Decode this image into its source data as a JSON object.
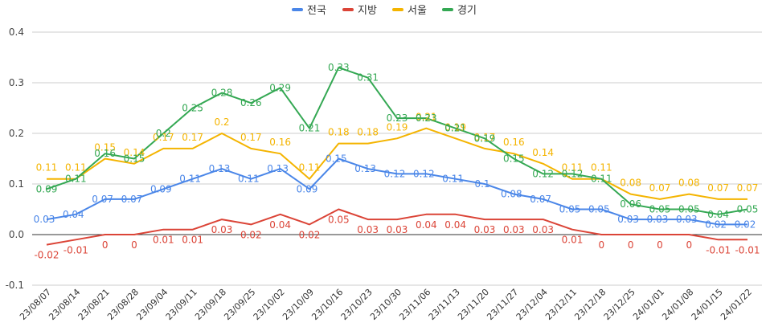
{
  "chart_data": {
    "type": "line",
    "title": "",
    "xlabel": "",
    "ylabel": "",
    "ylim": [
      -0.1,
      0.4
    ],
    "yticks": [
      "-0.1",
      "0.0",
      "0.1",
      "0.2",
      "0.3",
      "0.4"
    ],
    "grid": true,
    "legend_position": "top-center",
    "categories": [
      "23/08/07",
      "23/08/14",
      "23/08/21",
      "23/08/28",
      "23/09/04",
      "23/09/11",
      "23/09/18",
      "23/09/25",
      "23/10/02",
      "23/10/09",
      "23/10/16",
      "23/10/23",
      "23/10/30",
      "23/11/06",
      "23/11/13",
      "23/11/20",
      "23/11/27",
      "23/12/04",
      "23/12/11",
      "23/12/18",
      "23/12/25",
      "24/01/01",
      "24/01/08",
      "24/01/15",
      "24/01/22"
    ],
    "series": [
      {
        "name": "전국",
        "color": "#4a86e8",
        "values": [
          0.03,
          0.04,
          0.07,
          0.07,
          0.09,
          0.11,
          0.13,
          0.11,
          0.13,
          0.09,
          0.15,
          0.13,
          0.12,
          0.12,
          0.11,
          0.1,
          0.08,
          0.07,
          0.05,
          0.05,
          0.03,
          0.03,
          0.03,
          0.02,
          0.02
        ],
        "labels": [
          "0.03",
          "0.04",
          "0.07",
          "0.07",
          "0.09",
          "0.11",
          "0.13",
          "0.11",
          "0.13",
          "0.09",
          "0.15",
          "0.13",
          "0.12",
          "0.12",
          "0.11",
          "0.1",
          "0.08",
          "0.07",
          "0.05",
          "0.05",
          "0.03",
          "0.03",
          "0.03",
          "0.02",
          "0.02"
        ]
      },
      {
        "name": "지방",
        "color": "#db4437",
        "values": [
          -0.02,
          -0.01,
          0,
          0,
          0.01,
          0.01,
          0.03,
          0.02,
          0.04,
          0.02,
          0.05,
          0.03,
          0.03,
          0.04,
          0.04,
          0.03,
          0.03,
          0.03,
          0.01,
          0,
          0,
          0,
          0,
          -0.01,
          -0.01
        ],
        "labels": [
          "-0.02",
          "-0.01",
          "0",
          "0",
          "0.01",
          "0.01",
          "0.03",
          "0.02",
          "0.04",
          "0.02",
          "0.05",
          "0.03",
          "0.03",
          "0.04",
          "0.04",
          "0.03",
          "0.03",
          "0.03",
          "0.01",
          "0",
          "0",
          "0",
          "0",
          "-0.01",
          "-0.01"
        ]
      },
      {
        "name": "서울",
        "color": "#f4b400",
        "values": [
          0.11,
          0.11,
          0.15,
          0.14,
          0.17,
          0.17,
          0.2,
          0.17,
          0.16,
          0.11,
          0.18,
          0.18,
          0.19,
          0.21,
          0.19,
          0.17,
          0.16,
          0.14,
          0.11,
          0.11,
          0.08,
          0.07,
          0.08,
          0.07,
          0.07
        ],
        "labels": [
          "0.11",
          "0.11",
          "0.15",
          "0.14",
          "0.17",
          "0.17",
          "0.2",
          "0.17",
          "0.16",
          "0.11",
          "0.18",
          "0.18",
          "0.19",
          "0.21",
          "0.19",
          "0.17",
          "0.16",
          "0.14",
          "0.11",
          "0.11",
          "0.08",
          "0.07",
          "0.08",
          "0.07",
          "0.07"
        ]
      },
      {
        "name": "경기",
        "color": "#34a853",
        "values": [
          0.09,
          0.11,
          0.16,
          0.15,
          0.2,
          0.25,
          0.28,
          0.26,
          0.29,
          0.21,
          0.33,
          0.31,
          0.23,
          0.23,
          0.21,
          0.19,
          0.15,
          0.12,
          0.12,
          0.11,
          0.06,
          0.05,
          0.05,
          0.04,
          0.05
        ],
        "labels": [
          "0.09",
          "0.11",
          "0.16",
          "0.15",
          "0.2",
          "0.25",
          "0.28",
          "0.26",
          "0.29",
          "0.21",
          "0.33",
          "0.31",
          "0.23",
          "0.23",
          "0.21",
          "0.19",
          "0.15",
          "0.12",
          "0.12",
          "0.11",
          "0.06",
          "0.05",
          "0.05",
          "0.04",
          "0.05"
        ]
      }
    ]
  }
}
